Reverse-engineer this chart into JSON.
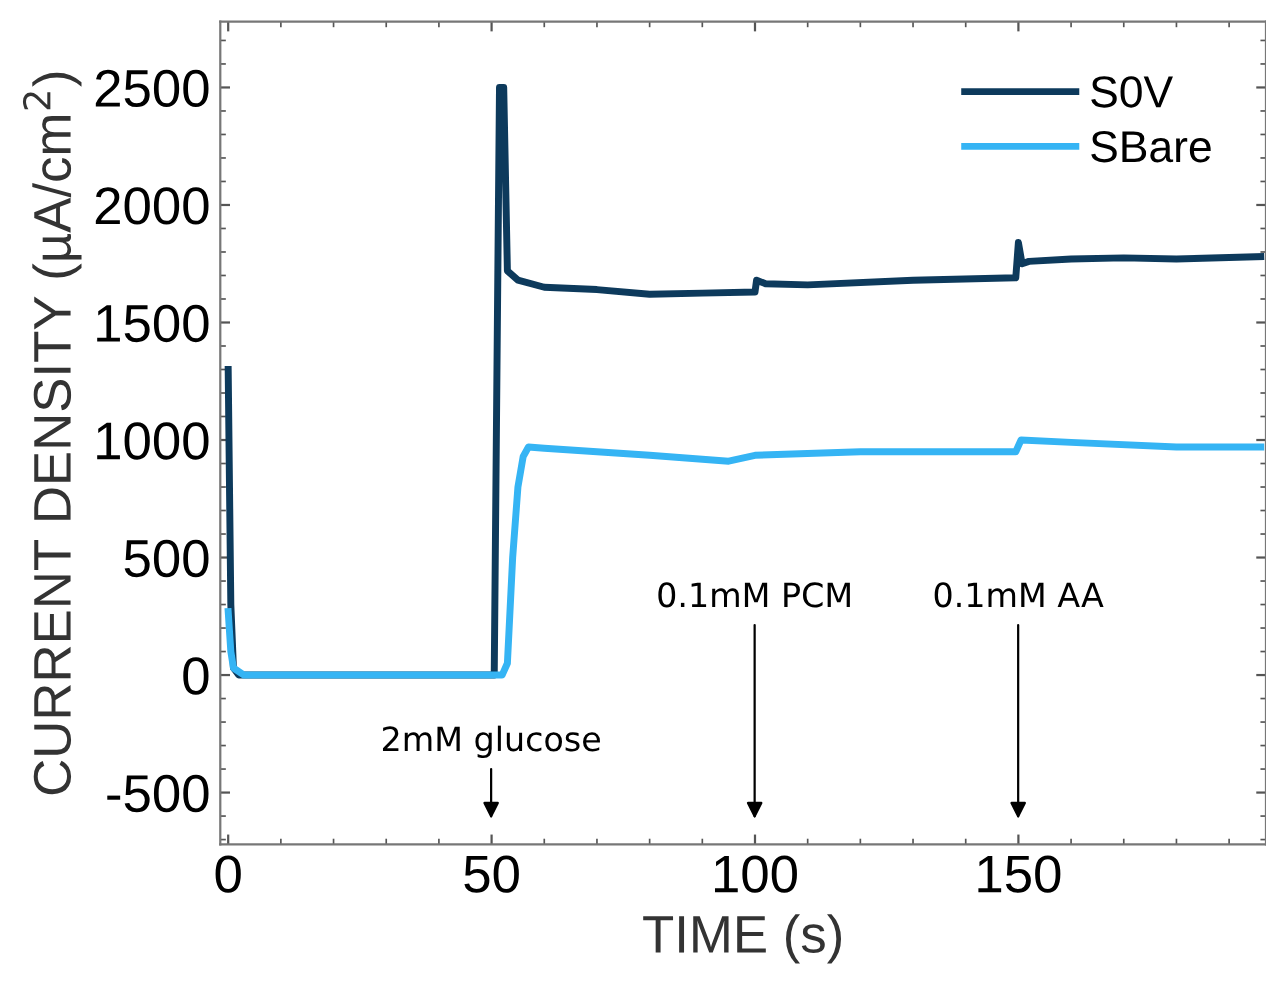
{
  "chart_data": {
    "type": "line",
    "xlabel": "TIME (s)",
    "ylabel": "CURRENT DENSITY (µA/cm$^{2}$)",
    "xlim": [
      -1.5,
      197
    ],
    "xticks": [
      0,
      50,
      100,
      150
    ],
    "ylim": [
      -720,
      2780
    ],
    "yticks": [
      -500,
      0,
      500,
      1000,
      1500,
      2000,
      2500
    ],
    "legend": "top right",
    "grid": false,
    "series": [
      {
        "name": "S0V",
        "color": "#0d3a5c",
        "x": [
          0,
          0.5,
          1,
          2,
          5,
          20,
          40,
          50.5,
          51.5,
          52.3,
          53,
          55,
          60,
          70,
          80,
          90,
          100,
          100.3,
          102,
          110,
          130,
          149.5,
          150,
          150.7,
          152,
          160,
          170,
          180,
          196
        ],
        "values": [
          1300,
          300,
          30,
          0,
          0,
          0,
          0,
          0,
          2500,
          2500,
          1720,
          1680,
          1650,
          1640,
          1620,
          1625,
          1630,
          1680,
          1665,
          1660,
          1680,
          1690,
          1840,
          1750,
          1760,
          1770,
          1775,
          1770,
          1780
        ]
      },
      {
        "name": "SBare",
        "color": "#35b4f4",
        "x": [
          0,
          0.5,
          1,
          3,
          10,
          30,
          52,
          53,
          54,
          55,
          56,
          57,
          60,
          70,
          80,
          95,
          100,
          120,
          149.5,
          150.5,
          160,
          180,
          196
        ],
        "values": [
          270,
          100,
          30,
          0,
          0,
          0,
          0,
          50,
          500,
          800,
          930,
          970,
          965,
          950,
          935,
          910,
          935,
          950,
          950,
          1000,
          990,
          970,
          970
        ]
      }
    ],
    "annotations": [
      "2mM glucose",
      "0.1mM PCM",
      "0.1mM AA"
    ]
  }
}
